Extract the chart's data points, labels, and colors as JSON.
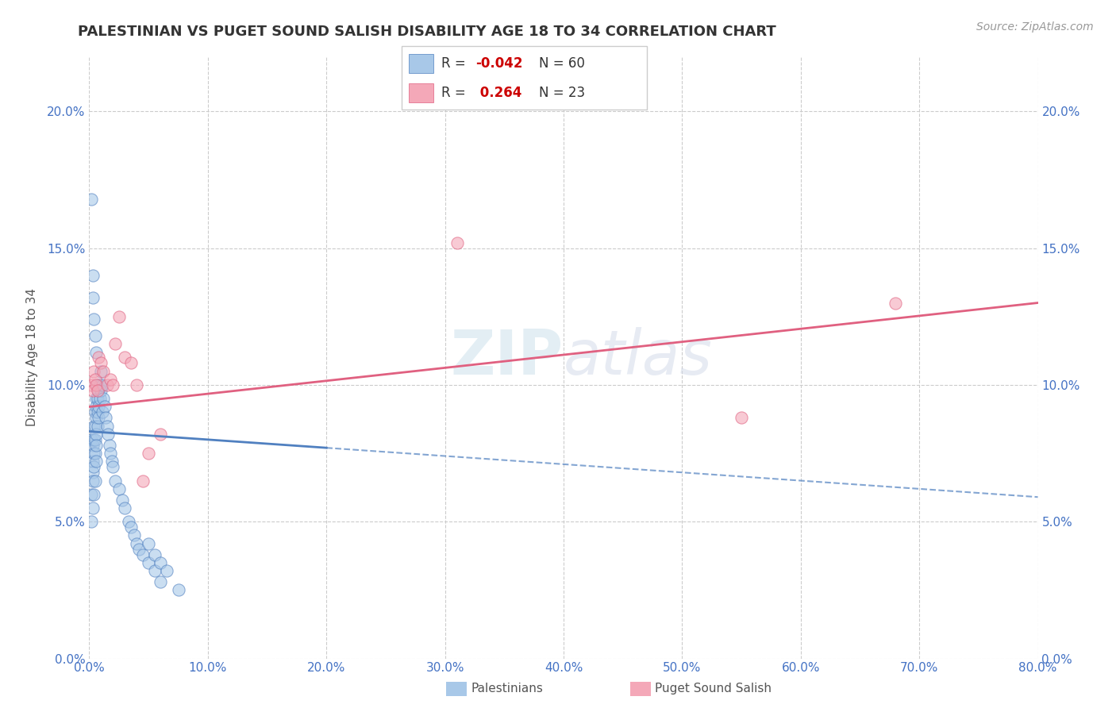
{
  "title": "PALESTINIAN VS PUGET SOUND SALISH DISABILITY AGE 18 TO 34 CORRELATION CHART",
  "source": "Source: ZipAtlas.com",
  "ylabel": "Disability Age 18 to 34",
  "xlim": [
    0.0,
    0.8
  ],
  "ylim": [
    0.0,
    0.22
  ],
  "xticks": [
    0.0,
    0.1,
    0.2,
    0.3,
    0.4,
    0.5,
    0.6,
    0.7,
    0.8
  ],
  "xticklabels": [
    "0.0%",
    "10.0%",
    "20.0%",
    "30.0%",
    "40.0%",
    "50.0%",
    "60.0%",
    "70.0%",
    "80.0%"
  ],
  "yticks": [
    0.0,
    0.05,
    0.1,
    0.15,
    0.2
  ],
  "yticklabels": [
    "0.0%",
    "5.0%",
    "10.0%",
    "15.0%",
    "20.0%"
  ],
  "blue_R": -0.042,
  "blue_N": 60,
  "pink_R": 0.264,
  "pink_N": 23,
  "blue_color": "#A8C8E8",
  "pink_color": "#F4A8B8",
  "blue_line_color": "#5080C0",
  "pink_line_color": "#E06080",
  "legend_label_blue": "Palestinians",
  "legend_label_pink": "Puget Sound Salish",
  "blue_x": [
    0.002,
    0.002,
    0.002,
    0.003,
    0.003,
    0.003,
    0.003,
    0.003,
    0.004,
    0.004,
    0.004,
    0.004,
    0.004,
    0.005,
    0.005,
    0.005,
    0.005,
    0.005,
    0.006,
    0.006,
    0.006,
    0.006,
    0.006,
    0.006,
    0.007,
    0.007,
    0.007,
    0.007,
    0.008,
    0.008,
    0.008,
    0.009,
    0.009,
    0.01,
    0.01,
    0.011,
    0.011,
    0.012,
    0.013,
    0.014,
    0.015,
    0.016,
    0.017,
    0.018,
    0.019,
    0.02,
    0.022,
    0.025,
    0.028,
    0.03,
    0.033,
    0.035,
    0.038,
    0.04,
    0.042,
    0.045,
    0.05,
    0.055,
    0.06,
    0.075
  ],
  "blue_y": [
    0.08,
    0.06,
    0.05,
    0.078,
    0.072,
    0.068,
    0.065,
    0.055,
    0.085,
    0.08,
    0.075,
    0.07,
    0.06,
    0.09,
    0.085,
    0.08,
    0.075,
    0.065,
    0.095,
    0.092,
    0.088,
    0.082,
    0.078,
    0.072,
    0.1,
    0.095,
    0.09,
    0.085,
    0.098,
    0.092,
    0.088,
    0.1,
    0.095,
    0.105,
    0.098,
    0.1,
    0.09,
    0.095,
    0.092,
    0.088,
    0.085,
    0.082,
    0.078,
    0.075,
    0.072,
    0.07,
    0.065,
    0.062,
    0.058,
    0.055,
    0.05,
    0.048,
    0.045,
    0.042,
    0.04,
    0.038,
    0.035,
    0.032,
    0.028,
    0.025
  ],
  "blue_y_extra": [
    0.168,
    0.14,
    0.132,
    0.124,
    0.118,
    0.112,
    0.042,
    0.038,
    0.035,
    0.032
  ],
  "blue_x_extra": [
    0.002,
    0.003,
    0.003,
    0.004,
    0.005,
    0.006,
    0.05,
    0.055,
    0.06,
    0.065
  ],
  "pink_x": [
    0.002,
    0.003,
    0.004,
    0.005,
    0.006,
    0.007,
    0.008,
    0.01,
    0.012,
    0.015,
    0.018,
    0.022,
    0.03,
    0.035,
    0.05,
    0.06,
    0.31,
    0.55,
    0.68,
    0.02,
    0.025,
    0.04,
    0.045
  ],
  "pink_y": [
    0.1,
    0.098,
    0.105,
    0.102,
    0.1,
    0.098,
    0.11,
    0.108,
    0.105,
    0.1,
    0.102,
    0.115,
    0.11,
    0.108,
    0.075,
    0.082,
    0.152,
    0.088,
    0.13,
    0.1,
    0.125,
    0.1,
    0.065
  ],
  "blue_line_start_x": 0.0,
  "blue_line_end_solid": 0.2,
  "blue_line_end_dashed": 0.8,
  "blue_line_start_y": 0.083,
  "blue_line_slope": -0.03,
  "pink_line_start_x": 0.0,
  "pink_line_end_x": 0.8,
  "pink_line_start_y": 0.092,
  "pink_line_end_y": 0.13
}
